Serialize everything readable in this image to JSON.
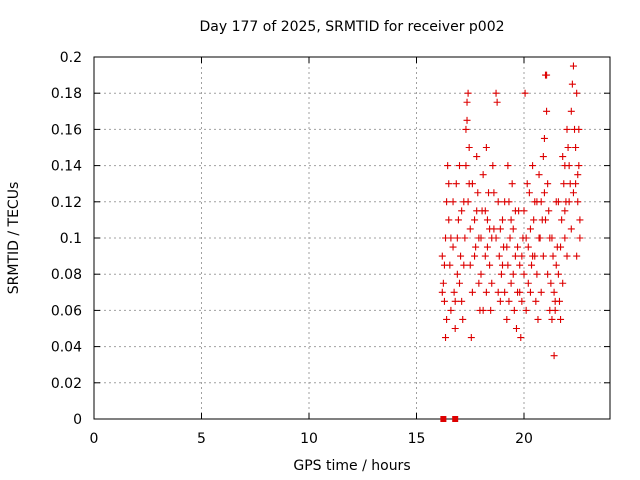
{
  "chart_data": {
    "type": "scatter",
    "title": "Day 177 of 2025, SRMTID for receiver p002",
    "xlabel": "GPS time / hours",
    "ylabel": "SRMTID / TECUs",
    "xlim": [
      0,
      24
    ],
    "ylim": [
      0,
      0.2
    ],
    "xticks": [
      0,
      5,
      10,
      15,
      20
    ],
    "yticks": [
      0,
      0.02,
      0.04,
      0.06,
      0.08,
      0.1,
      0.12,
      0.14,
      0.16,
      0.18,
      0.2
    ],
    "grid": true,
    "colors": {
      "points": "#dd0000",
      "grid": "#a0a0a0",
      "axis": "#000000"
    },
    "zero_markers": [
      {
        "x": 16.25,
        "y": 0
      },
      {
        "x": 16.8,
        "y": 0
      }
    ],
    "series": [
      {
        "name": "SRMTID",
        "marker": "plus",
        "points": [
          [
            16.2,
            0.09
          ],
          [
            16.25,
            0.075
          ],
          [
            16.3,
            0.065
          ],
          [
            16.35,
            0.1
          ],
          [
            16.4,
            0.12
          ],
          [
            16.45,
            0.14
          ],
          [
            16.5,
            0.11
          ],
          [
            16.55,
            0.085
          ],
          [
            16.6,
            0.06
          ],
          [
            16.7,
            0.095
          ],
          [
            16.75,
            0.07
          ],
          [
            16.8,
            0.05
          ],
          [
            16.85,
            0.13
          ],
          [
            16.9,
            0.08
          ],
          [
            16.95,
            0.11
          ],
          [
            17.0,
            0.14
          ],
          [
            17.05,
            0.09
          ],
          [
            17.1,
            0.065
          ],
          [
            17.2,
            0.12
          ],
          [
            17.25,
            0.1
          ],
          [
            17.3,
            0.16
          ],
          [
            17.35,
            0.175
          ],
          [
            17.4,
            0.18
          ],
          [
            17.45,
            0.15
          ],
          [
            17.5,
            0.085
          ],
          [
            17.55,
            0.045
          ],
          [
            17.6,
            0.13
          ],
          [
            17.7,
            0.11
          ],
          [
            17.75,
            0.095
          ],
          [
            17.8,
            0.145
          ],
          [
            17.85,
            0.125
          ],
          [
            17.9,
            0.075
          ],
          [
            17.95,
            0.06
          ],
          [
            18.0,
            0.1
          ],
          [
            18.05,
            0.115
          ],
          [
            18.1,
            0.135
          ],
          [
            18.2,
            0.09
          ],
          [
            18.25,
            0.07
          ],
          [
            18.3,
            0.11
          ],
          [
            18.35,
            0.125
          ],
          [
            18.4,
            0.085
          ],
          [
            18.45,
            0.06
          ],
          [
            18.5,
            0.1
          ],
          [
            18.55,
            0.14
          ],
          [
            18.6,
            0.105
          ],
          [
            18.7,
            0.18
          ],
          [
            18.75,
            0.175
          ],
          [
            18.8,
            0.12
          ],
          [
            18.85,
            0.09
          ],
          [
            18.9,
            0.065
          ],
          [
            18.95,
            0.08
          ],
          [
            19.0,
            0.11
          ],
          [
            19.05,
            0.095
          ],
          [
            19.1,
            0.07
          ],
          [
            19.2,
            0.055
          ],
          [
            19.25,
            0.085
          ],
          [
            19.3,
            0.12
          ],
          [
            19.35,
            0.1
          ],
          [
            19.4,
            0.075
          ],
          [
            19.45,
            0.13
          ],
          [
            19.5,
            0.105
          ],
          [
            19.55,
            0.06
          ],
          [
            19.6,
            0.09
          ],
          [
            19.7,
            0.07
          ],
          [
            19.75,
            0.115
          ],
          [
            19.8,
            0.085
          ],
          [
            19.85,
            0.045
          ],
          [
            19.9,
            0.065
          ],
          [
            19.95,
            0.1
          ],
          [
            20.0,
            0.08
          ],
          [
            20.05,
            0.18
          ],
          [
            20.1,
            0.06
          ],
          [
            20.2,
            0.095
          ],
          [
            20.25,
            0.125
          ],
          [
            20.3,
            0.07
          ],
          [
            20.35,
            0.085
          ],
          [
            20.4,
            0.14
          ],
          [
            20.45,
            0.11
          ],
          [
            20.5,
            0.09
          ],
          [
            20.55,
            0.065
          ],
          [
            20.6,
            0.12
          ],
          [
            20.7,
            0.135
          ],
          [
            20.75,
            0.1
          ],
          [
            20.8,
            0.07
          ],
          [
            20.85,
            0.11
          ],
          [
            20.9,
            0.145
          ],
          [
            20.95,
            0.155
          ],
          [
            21.0,
            0.19
          ],
          [
            21.05,
            0.17
          ],
          [
            21.1,
            0.13
          ],
          [
            21.2,
            0.1
          ],
          [
            21.25,
            0.075
          ],
          [
            21.3,
            0.055
          ],
          [
            21.35,
            0.09
          ],
          [
            21.4,
            0.035
          ],
          [
            21.45,
            0.065
          ],
          [
            21.5,
            0.12
          ],
          [
            21.55,
            0.095
          ],
          [
            21.6,
            0.08
          ],
          [
            21.7,
            0.055
          ],
          [
            21.75,
            0.11
          ],
          [
            21.8,
            0.145
          ],
          [
            21.85,
            0.13
          ],
          [
            21.9,
            0.1
          ],
          [
            21.95,
            0.12
          ],
          [
            22.0,
            0.16
          ],
          [
            22.05,
            0.15
          ],
          [
            22.1,
            0.12
          ],
          [
            22.2,
            0.17
          ],
          [
            22.25,
            0.185
          ],
          [
            22.3,
            0.195
          ],
          [
            22.35,
            0.16
          ],
          [
            22.4,
            0.13
          ],
          [
            22.45,
            0.09
          ],
          [
            22.5,
            0.12
          ],
          [
            22.55,
            0.16
          ],
          [
            22.6,
            0.1
          ],
          [
            16.2,
            0.07
          ],
          [
            16.3,
            0.085
          ],
          [
            16.4,
            0.055
          ],
          [
            16.5,
            0.13
          ],
          [
            16.6,
            0.1
          ],
          [
            16.7,
            0.12
          ],
          [
            16.8,
            0.065
          ],
          [
            16.9,
            0.1
          ],
          [
            17.0,
            0.075
          ],
          [
            17.1,
            0.115
          ],
          [
            17.2,
            0.085
          ],
          [
            17.3,
            0.14
          ],
          [
            17.4,
            0.12
          ],
          [
            17.5,
            0.105
          ],
          [
            17.6,
            0.07
          ],
          [
            17.7,
            0.09
          ],
          [
            17.8,
            0.115
          ],
          [
            17.9,
            0.1
          ],
          [
            18.0,
            0.08
          ],
          [
            18.1,
            0.06
          ],
          [
            18.2,
            0.115
          ],
          [
            18.3,
            0.095
          ],
          [
            18.4,
            0.105
          ],
          [
            18.5,
            0.075
          ],
          [
            18.6,
            0.125
          ],
          [
            18.7,
            0.1
          ],
          [
            18.8,
            0.07
          ],
          [
            18.9,
            0.105
          ],
          [
            19.0,
            0.085
          ],
          [
            19.1,
            0.12
          ],
          [
            19.2,
            0.095
          ],
          [
            19.3,
            0.065
          ],
          [
            19.4,
            0.11
          ],
          [
            19.5,
            0.08
          ],
          [
            19.6,
            0.115
          ],
          [
            19.7,
            0.095
          ],
          [
            19.8,
            0.07
          ],
          [
            19.9,
            0.09
          ],
          [
            20.0,
            0.115
          ],
          [
            20.1,
            0.1
          ],
          [
            20.2,
            0.075
          ],
          [
            20.3,
            0.105
          ],
          [
            20.4,
            0.09
          ],
          [
            20.5,
            0.12
          ],
          [
            20.6,
            0.08
          ],
          [
            20.7,
            0.1
          ],
          [
            20.8,
            0.12
          ],
          [
            20.9,
            0.09
          ],
          [
            21.0,
            0.11
          ],
          [
            21.1,
            0.08
          ],
          [
            21.2,
            0.06
          ],
          [
            21.3,
            0.1
          ],
          [
            21.4,
            0.07
          ],
          [
            21.5,
            0.085
          ],
          [
            21.6,
            0.12
          ],
          [
            21.7,
            0.095
          ],
          [
            21.8,
            0.075
          ],
          [
            21.9,
            0.115
          ],
          [
            22.0,
            0.09
          ],
          [
            22.1,
            0.14
          ],
          [
            22.2,
            0.105
          ],
          [
            22.3,
            0.125
          ],
          [
            22.4,
            0.15
          ],
          [
            22.5,
            0.135
          ],
          [
            22.6,
            0.11
          ],
          [
            17.35,
            0.165
          ],
          [
            17.45,
            0.13
          ],
          [
            18.25,
            0.15
          ],
          [
            19.25,
            0.14
          ],
          [
            20.15,
            0.13
          ],
          [
            20.95,
            0.125
          ],
          [
            21.05,
            0.19
          ],
          [
            21.15,
            0.115
          ],
          [
            21.9,
            0.14
          ],
          [
            22.15,
            0.13
          ],
          [
            22.45,
            0.18
          ],
          [
            22.55,
            0.14
          ],
          [
            16.35,
            0.045
          ],
          [
            17.15,
            0.055
          ],
          [
            19.65,
            0.05
          ],
          [
            20.65,
            0.055
          ],
          [
            21.45,
            0.06
          ],
          [
            21.65,
            0.065
          ]
        ]
      }
    ]
  }
}
